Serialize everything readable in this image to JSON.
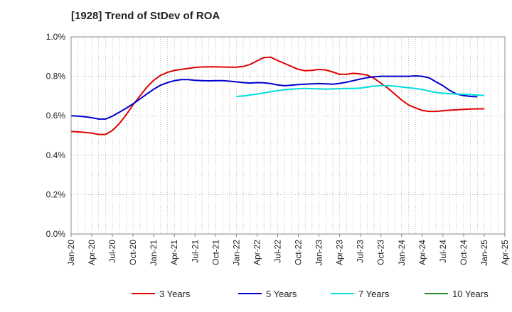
{
  "chart_data": {
    "type": "line",
    "title": "[1928]  Trend of StDev of ROA",
    "xlabel": "",
    "ylabel": "",
    "ylim": [
      0,
      1.0
    ],
    "y_ticks": [
      "0.0%",
      "0.2%",
      "0.4%",
      "0.6%",
      "0.8%",
      "1.0%"
    ],
    "x_ticks": [
      "Jan-20",
      "Apr-20",
      "Jul-20",
      "Oct-20",
      "Jan-21",
      "Apr-21",
      "Jul-21",
      "Oct-21",
      "Jan-22",
      "Apr-22",
      "Jul-22",
      "Oct-22",
      "Jan-23",
      "Apr-23",
      "Jul-23",
      "Oct-23",
      "Jan-24",
      "Apr-24",
      "Jul-24",
      "Oct-24",
      "Jan-25",
      "Apr-25"
    ],
    "x_start": "2020-01",
    "grid": "vertical-monthly-dotted, horizontal-dotted",
    "legend_position": "bottom",
    "series": [
      {
        "name": "3 Years",
        "color": "#e00000",
        "start": "2020-01",
        "values": [
          0.52,
          0.518,
          0.515,
          0.512,
          0.505,
          0.505,
          0.525,
          0.56,
          0.605,
          0.655,
          0.7,
          0.745,
          0.78,
          0.805,
          0.82,
          0.83,
          0.835,
          0.84,
          0.845,
          0.847,
          0.848,
          0.848,
          0.847,
          0.846,
          0.846,
          0.85,
          0.86,
          0.878,
          0.895,
          0.897,
          0.88,
          0.865,
          0.85,
          0.835,
          0.828,
          0.83,
          0.835,
          0.832,
          0.822,
          0.81,
          0.81,
          0.815,
          0.812,
          0.806,
          0.79,
          0.765,
          0.74,
          0.71,
          0.68,
          0.655,
          0.64,
          0.627,
          0.622,
          0.622,
          0.625,
          0.628,
          0.63,
          0.632,
          0.634,
          0.635,
          0.635
        ]
      },
      {
        "name": "5 Years",
        "color": "#0000cc",
        "start": "2020-01",
        "values": [
          0.6,
          0.598,
          0.595,
          0.59,
          0.583,
          0.583,
          0.598,
          0.618,
          0.638,
          0.66,
          0.685,
          0.71,
          0.735,
          0.755,
          0.768,
          0.778,
          0.783,
          0.783,
          0.78,
          0.778,
          0.777,
          0.778,
          0.778,
          0.775,
          0.772,
          0.768,
          0.766,
          0.768,
          0.767,
          0.763,
          0.756,
          0.752,
          0.755,
          0.758,
          0.76,
          0.762,
          0.763,
          0.762,
          0.76,
          0.764,
          0.77,
          0.778,
          0.786,
          0.793,
          0.798,
          0.8,
          0.8,
          0.8,
          0.8,
          0.8,
          0.802,
          0.8,
          0.792,
          0.772,
          0.752,
          0.728,
          0.71,
          0.702,
          0.698,
          0.696
        ]
      },
      {
        "name": "7 Years",
        "color": "#00dddd",
        "start": "2022-01",
        "values": [
          0.698,
          0.7,
          0.705,
          0.71,
          0.716,
          0.722,
          0.727,
          0.732,
          0.735,
          0.737,
          0.738,
          0.737,
          0.736,
          0.735,
          0.736,
          0.737,
          0.738,
          0.738,
          0.74,
          0.745,
          0.75,
          0.753,
          0.752,
          0.75,
          0.746,
          0.742,
          0.738,
          0.733,
          0.725,
          0.718,
          0.714,
          0.712,
          0.71,
          0.709,
          0.707,
          0.705,
          0.703
        ]
      },
      {
        "name": "10 Years",
        "color": "#228822",
        "start": "2022-01",
        "values": []
      }
    ]
  }
}
